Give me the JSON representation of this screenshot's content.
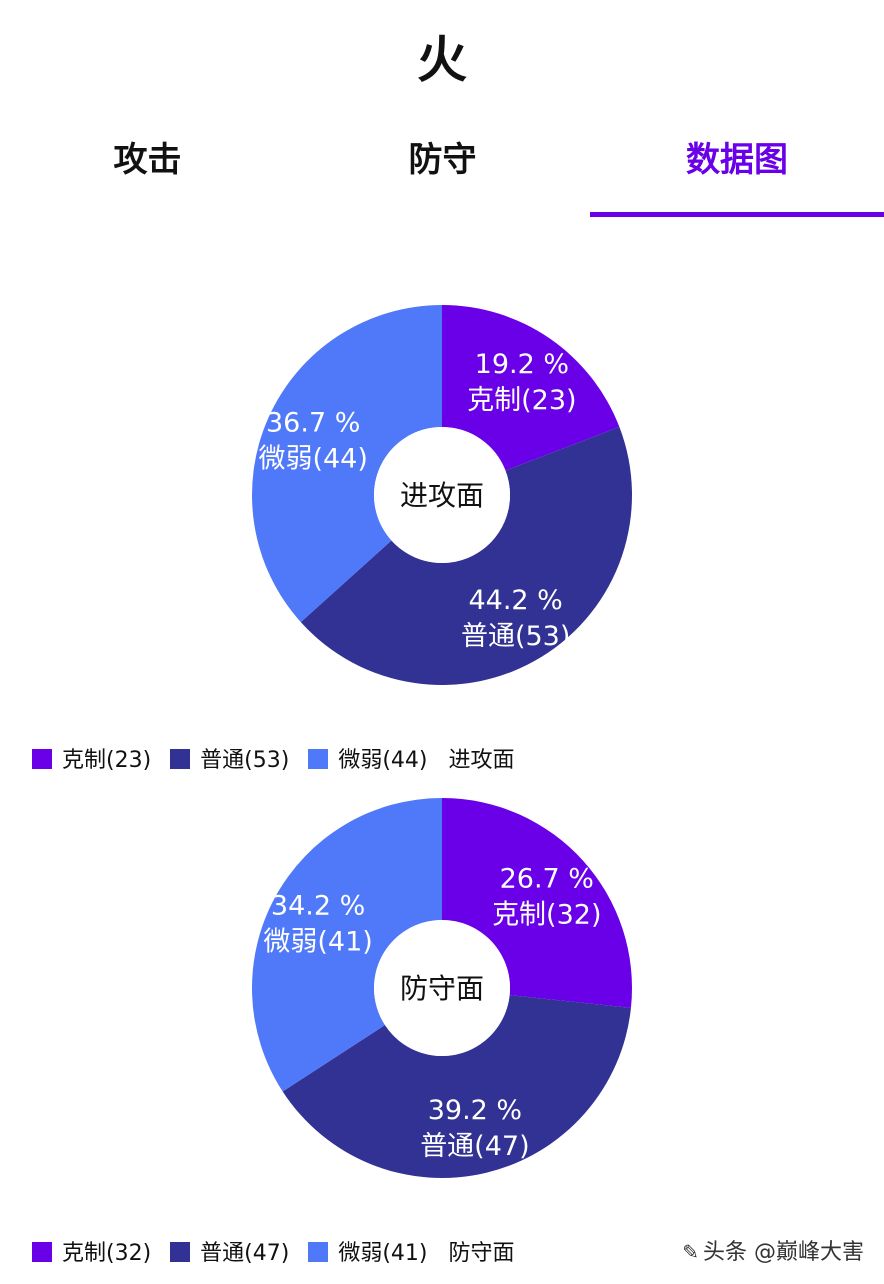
{
  "page": {
    "title": "火"
  },
  "tabs": [
    {
      "label": "攻击",
      "active": false
    },
    {
      "label": "防守",
      "active": false
    },
    {
      "label": "数据图",
      "active": true
    }
  ],
  "colors": {
    "accent": "#6a00e8",
    "tab_text": "#111111",
    "tab_active_text": "#6a00e8",
    "slice_kezhi": "#6a00e8",
    "slice_putong": "#323295",
    "slice_weiruo": "#4f79f8"
  },
  "chart_data": [
    {
      "type": "pie",
      "donut": true,
      "center_label": "进攻面",
      "slices": [
        {
          "label": "克制(23)",
          "name": "克制",
          "value": 23,
          "percent": "19.2 %",
          "color": "#6a00e8"
        },
        {
          "label": "普通(53)",
          "name": "普通",
          "value": 53,
          "percent": "44.2 %",
          "color": "#323295"
        },
        {
          "label": "微弱(44)",
          "name": "微弱",
          "value": 44,
          "percent": "36.7 %",
          "color": "#4f79f8"
        }
      ],
      "legend": {
        "placement": "bottom-left",
        "items": [
          "克制(23)",
          "普通(53)",
          "微弱(44)"
        ],
        "title": "进攻面"
      }
    },
    {
      "type": "pie",
      "donut": true,
      "center_label": "防守面",
      "slices": [
        {
          "label": "克制(32)",
          "name": "克制",
          "value": 32,
          "percent": "26.7 %",
          "color": "#6a00e8"
        },
        {
          "label": "普通(47)",
          "name": "普通",
          "value": 47,
          "percent": "39.2 %",
          "color": "#323295"
        },
        {
          "label": "微弱(41)",
          "name": "微弱",
          "value": 41,
          "percent": "34.2 %",
          "color": "#4f79f8"
        }
      ],
      "legend": {
        "placement": "bottom-left",
        "items": [
          "克制(32)",
          "普通(47)",
          "微弱(41)"
        ],
        "title": "防守面"
      }
    }
  ],
  "watermark": {
    "icon": "toutiao-icon",
    "text": "头条 @巅峰大害"
  }
}
